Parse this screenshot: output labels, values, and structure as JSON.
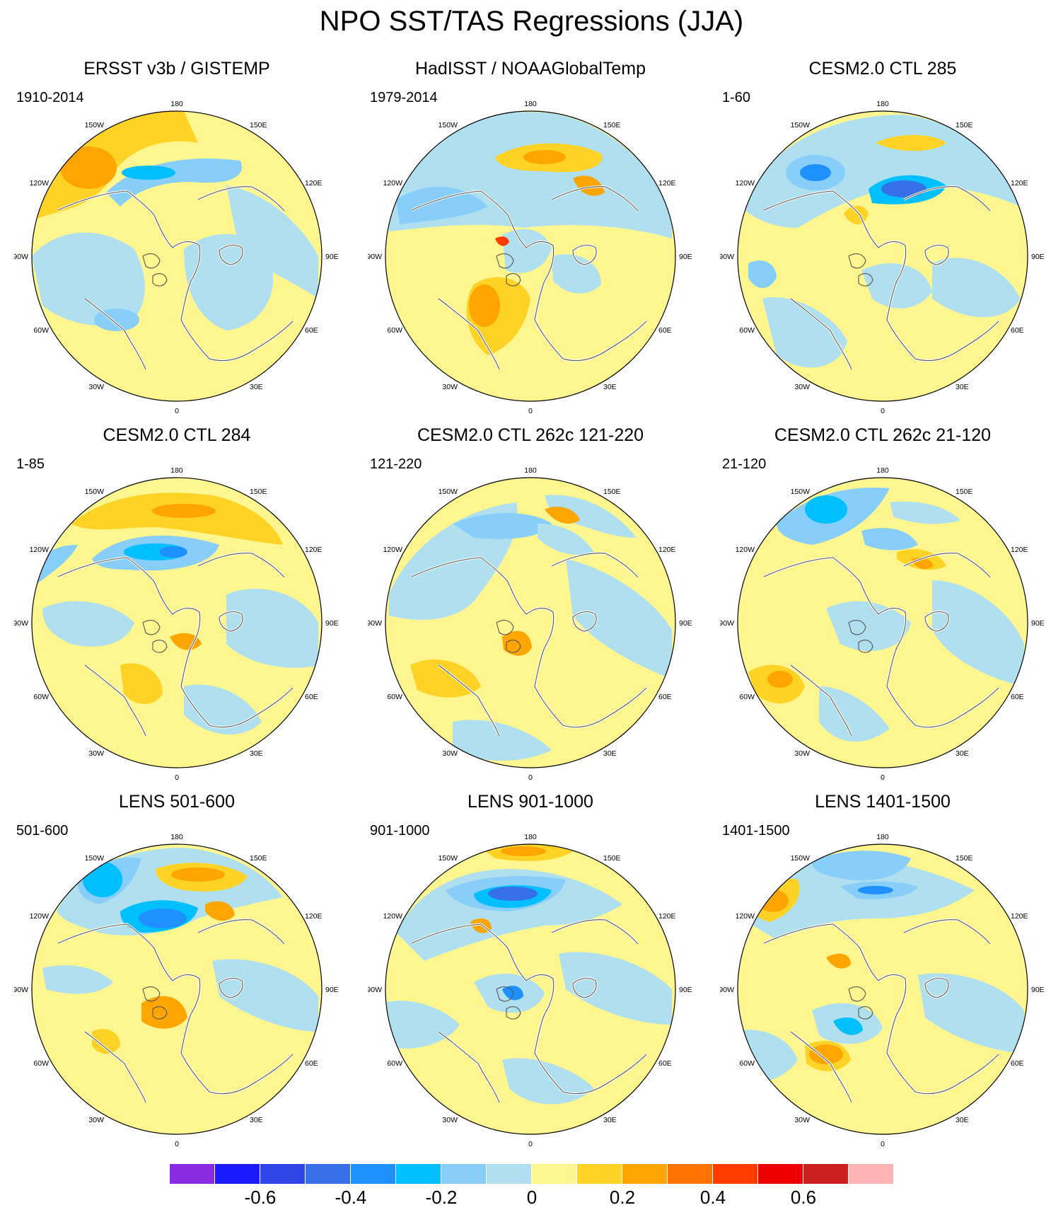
{
  "title": "NPO SST/TAS Regressions (JJA)",
  "axis_labels": {
    "top": "180",
    "bottom": "0",
    "left": "90W",
    "right": "90E",
    "upper_left": "150W",
    "upper_right": "150E",
    "mid_upper_left": "120W",
    "mid_upper_right": "120E",
    "mid_lower_left": "60W",
    "mid_lower_right": "60E",
    "lower_left": "30W",
    "lower_right": "30E"
  },
  "panels": [
    {
      "title": "ERSST v3b / GISTEMP",
      "years": "1910-2014"
    },
    {
      "title": "HadISST / NOAAGlobalTemp",
      "years": "1979-2014"
    },
    {
      "title": "CESM2.0 CTL 285",
      "years": "1-60"
    },
    {
      "title": "CESM2.0 CTL 284",
      "years": "1-85"
    },
    {
      "title": "CESM2.0 CTL 262c 121-220",
      "years": "121-220"
    },
    {
      "title": "CESM2.0 CTL 262c 21-120",
      "years": "21-120"
    },
    {
      "title": "LENS 501-600",
      "years": "501-600"
    },
    {
      "title": "LENS 901-1000",
      "years": "901-1000"
    },
    {
      "title": "LENS 1401-1500",
      "years": "1401-1500"
    }
  ],
  "colorbar": {
    "colors": [
      "#8a2be2",
      "#1a1aff",
      "#2f45e5",
      "#3670e8",
      "#1e90ff",
      "#00bfff",
      "#87cefa",
      "#b0e0f0",
      "#fff68f",
      "#ffd326",
      "#ffa500",
      "#ff7400",
      "#ff3b00",
      "#ee0000",
      "#cc1f1f",
      "#ffb3b3"
    ],
    "ticks": [
      "-0.6",
      "-0.4",
      "-0.2",
      "0",
      "0.2",
      "0.4",
      "0.6"
    ]
  }
}
